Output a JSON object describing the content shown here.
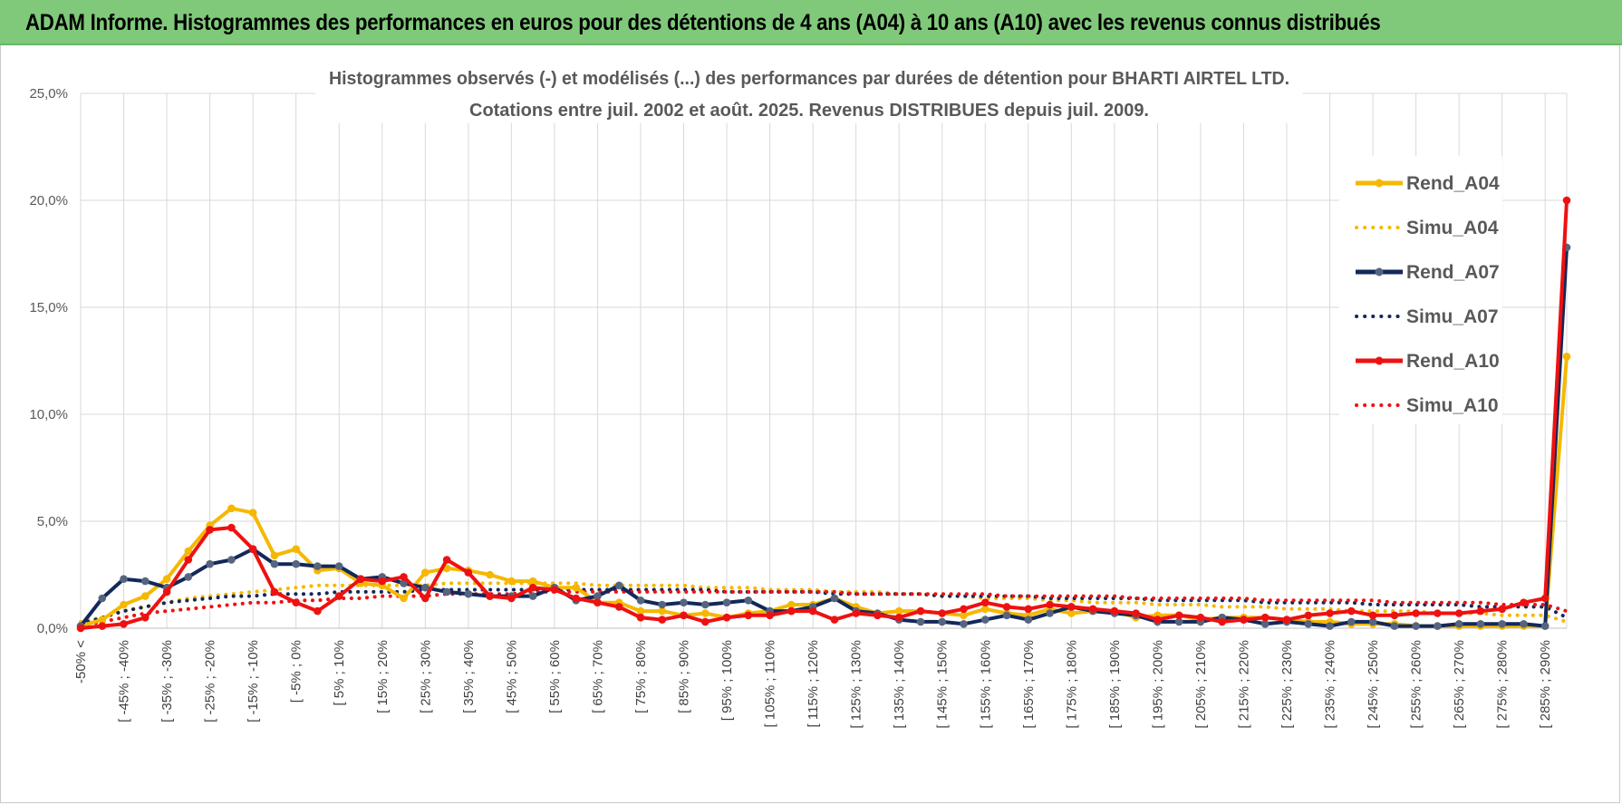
{
  "header": {
    "title": "ADAM Informe. Histogrammes des performances en euros pour des détentions de 4 ans (A04) à 10 ans (A10) avec les revenus connus distribués"
  },
  "chart_data": {
    "type": "line",
    "title_line1": "Histogrammes observés (-) et modélisés (...) des performances par durées de détention pour BHARTI AIRTEL LTD.",
    "title_line2": "Cotations entre juil. 2002 et août. 2025. Revenus DISTRIBUES depuis juil. 2009.",
    "xlabel": "",
    "ylabel": "",
    "ylim": [
      0,
      25
    ],
    "yticks": [
      "0,0%",
      "5,0%",
      "10,0%",
      "15,0%",
      "20,0%",
      "25,0%"
    ],
    "grid": true,
    "legend_position": "right",
    "x_tick_labels": [
      "-50% <",
      "[ -45% ; -40%",
      "[ -35% ; -30%",
      "[ -25% ; -20%",
      "[ -15% ; -10%",
      "[ -5% ; 0%",
      "[ 5% ; 10%",
      "[ 15% ; 20%",
      "[ 25% ; 30%",
      "[ 35% ; 40%",
      "[ 45% ; 50%",
      "[ 55% ; 60%",
      "[ 65% ; 70%",
      "[ 75% ; 80%",
      "[ 85% ; 90%",
      "[ 95% ; 100%",
      "[ 105% ; 110%",
      "[ 115% ; 120%",
      "[ 125% ; 130%",
      "[ 135% ; 140%",
      "[ 145% ; 150%",
      "[ 155% ; 160%",
      "[ 165% ; 170%",
      "[ 175% ; 180%",
      "[ 185% ; 190%",
      "[ 195% ; 200%",
      "[ 205% ; 210%",
      "[ 215% ; 220%",
      "[ 225% ; 230%",
      "[ 235% ; 240%",
      "[ 245% ; 250%",
      "[ 255% ; 260%",
      "[ 265% ; 270%",
      "[ 275% ; 280%",
      "[ 285% ; 290%"
    ],
    "num_points": 70,
    "series": [
      {
        "name": "Rend_A04",
        "style": "solid",
        "color": "#f5b800",
        "values": [
          0.1,
          0.4,
          1.1,
          1.5,
          2.3,
          3.6,
          4.8,
          5.6,
          5.4,
          3.4,
          3.7,
          2.7,
          2.8,
          2.1,
          2.0,
          1.4,
          2.6,
          2.8,
          2.7,
          2.5,
          2.2,
          2.2,
          1.9,
          1.9,
          1.2,
          1.2,
          0.8,
          0.8,
          0.6,
          0.7,
          0.5,
          0.7,
          0.8,
          1.1,
          1.1,
          1.4,
          1.0,
          0.7,
          0.8,
          0.8,
          0.7,
          0.6,
          0.9,
          0.7,
          0.6,
          0.9,
          0.7,
          0.8,
          0.8,
          0.5,
          0.6,
          0.6,
          0.4,
          0.5,
          0.5,
          0.5,
          0.4,
          0.3,
          0.3,
          0.2,
          0.2,
          0.2,
          0.1,
          0.1,
          0.1,
          0.1,
          0.1,
          0.1,
          0.1,
          12.7
        ]
      },
      {
        "name": "Simu_A04",
        "style": "dotted",
        "color": "#f5b800",
        "values": [
          0.3,
          0.5,
          0.8,
          1.0,
          1.2,
          1.4,
          1.5,
          1.6,
          1.7,
          1.8,
          1.9,
          2.0,
          2.0,
          2.0,
          2.0,
          2.0,
          2.0,
          2.1,
          2.1,
          2.1,
          2.1,
          2.1,
          2.1,
          2.1,
          2.0,
          2.0,
          2.0,
          2.0,
          2.0,
          1.9,
          1.9,
          1.9,
          1.8,
          1.8,
          1.8,
          1.7,
          1.7,
          1.7,
          1.6,
          1.6,
          1.5,
          1.5,
          1.4,
          1.4,
          1.4,
          1.3,
          1.3,
          1.2,
          1.2,
          1.2,
          1.1,
          1.1,
          1.1,
          1.0,
          1.0,
          1.0,
          0.9,
          0.9,
          0.9,
          0.8,
          0.8,
          0.8,
          0.8,
          0.7,
          0.7,
          0.7,
          0.6,
          0.6,
          0.6,
          0.3
        ]
      },
      {
        "name": "Rend_A07",
        "style": "solid",
        "color": "#13285a",
        "values": [
          0.1,
          1.4,
          2.3,
          2.2,
          1.9,
          2.4,
          3.0,
          3.2,
          3.7,
          3.0,
          3.0,
          2.9,
          2.9,
          2.3,
          2.4,
          2.1,
          1.9,
          1.7,
          1.6,
          1.5,
          1.5,
          1.5,
          1.9,
          1.3,
          1.5,
          2.0,
          1.3,
          1.1,
          1.2,
          1.1,
          1.2,
          1.3,
          0.8,
          0.8,
          1.0,
          1.4,
          0.8,
          0.7,
          0.4,
          0.3,
          0.3,
          0.2,
          0.4,
          0.6,
          0.4,
          0.7,
          1.0,
          0.8,
          0.7,
          0.6,
          0.3,
          0.3,
          0.3,
          0.5,
          0.4,
          0.2,
          0.3,
          0.2,
          0.1,
          0.3,
          0.3,
          0.1,
          0.1,
          0.1,
          0.2,
          0.2,
          0.2,
          0.2,
          0.1,
          17.8
        ]
      },
      {
        "name": "Simu_A07",
        "style": "dotted",
        "color": "#13285a",
        "values": [
          0.2,
          0.5,
          0.8,
          1.0,
          1.2,
          1.3,
          1.4,
          1.5,
          1.5,
          1.6,
          1.6,
          1.6,
          1.7,
          1.7,
          1.7,
          1.7,
          1.8,
          1.8,
          1.8,
          1.8,
          1.8,
          1.8,
          1.8,
          1.8,
          1.8,
          1.8,
          1.8,
          1.8,
          1.8,
          1.8,
          1.7,
          1.7,
          1.7,
          1.7,
          1.7,
          1.6,
          1.6,
          1.6,
          1.6,
          1.6,
          1.5,
          1.5,
          1.5,
          1.5,
          1.5,
          1.4,
          1.4,
          1.4,
          1.4,
          1.4,
          1.3,
          1.3,
          1.3,
          1.3,
          1.3,
          1.2,
          1.2,
          1.2,
          1.2,
          1.2,
          1.1,
          1.1,
          1.1,
          1.1,
          1.1,
          1.0,
          1.0,
          1.0,
          1.0,
          0.5
        ]
      },
      {
        "name": "Rend_A10",
        "style": "solid",
        "color": "#ee1111",
        "values": [
          0.0,
          0.1,
          0.2,
          0.5,
          1.7,
          3.2,
          4.6,
          4.7,
          3.7,
          1.7,
          1.2,
          0.8,
          1.5,
          2.3,
          2.2,
          2.4,
          1.4,
          3.2,
          2.6,
          1.5,
          1.4,
          1.9,
          1.8,
          1.4,
          1.2,
          1.0,
          0.5,
          0.4,
          0.6,
          0.3,
          0.5,
          0.6,
          0.6,
          0.8,
          0.8,
          0.4,
          0.7,
          0.6,
          0.5,
          0.8,
          0.7,
          0.9,
          1.2,
          1.0,
          0.9,
          1.1,
          1.0,
          0.9,
          0.8,
          0.7,
          0.4,
          0.6,
          0.5,
          0.3,
          0.4,
          0.5,
          0.4,
          0.6,
          0.7,
          0.8,
          0.6,
          0.6,
          0.7,
          0.7,
          0.7,
          0.8,
          0.9,
          1.2,
          1.4,
          20.0
        ]
      },
      {
        "name": "Simu_A10",
        "style": "dotted",
        "color": "#ee1111",
        "values": [
          0.1,
          0.3,
          0.5,
          0.7,
          0.8,
          0.9,
          1.0,
          1.1,
          1.2,
          1.2,
          1.3,
          1.3,
          1.4,
          1.4,
          1.5,
          1.5,
          1.5,
          1.6,
          1.6,
          1.6,
          1.6,
          1.7,
          1.7,
          1.7,
          1.7,
          1.7,
          1.7,
          1.7,
          1.7,
          1.7,
          1.7,
          1.7,
          1.7,
          1.7,
          1.7,
          1.7,
          1.6,
          1.6,
          1.6,
          1.6,
          1.6,
          1.6,
          1.6,
          1.5,
          1.5,
          1.5,
          1.5,
          1.5,
          1.5,
          1.4,
          1.4,
          1.4,
          1.4,
          1.4,
          1.4,
          1.3,
          1.3,
          1.3,
          1.3,
          1.3,
          1.3,
          1.2,
          1.2,
          1.2,
          1.2,
          1.2,
          1.1,
          1.1,
          1.1,
          0.8
        ]
      }
    ]
  }
}
